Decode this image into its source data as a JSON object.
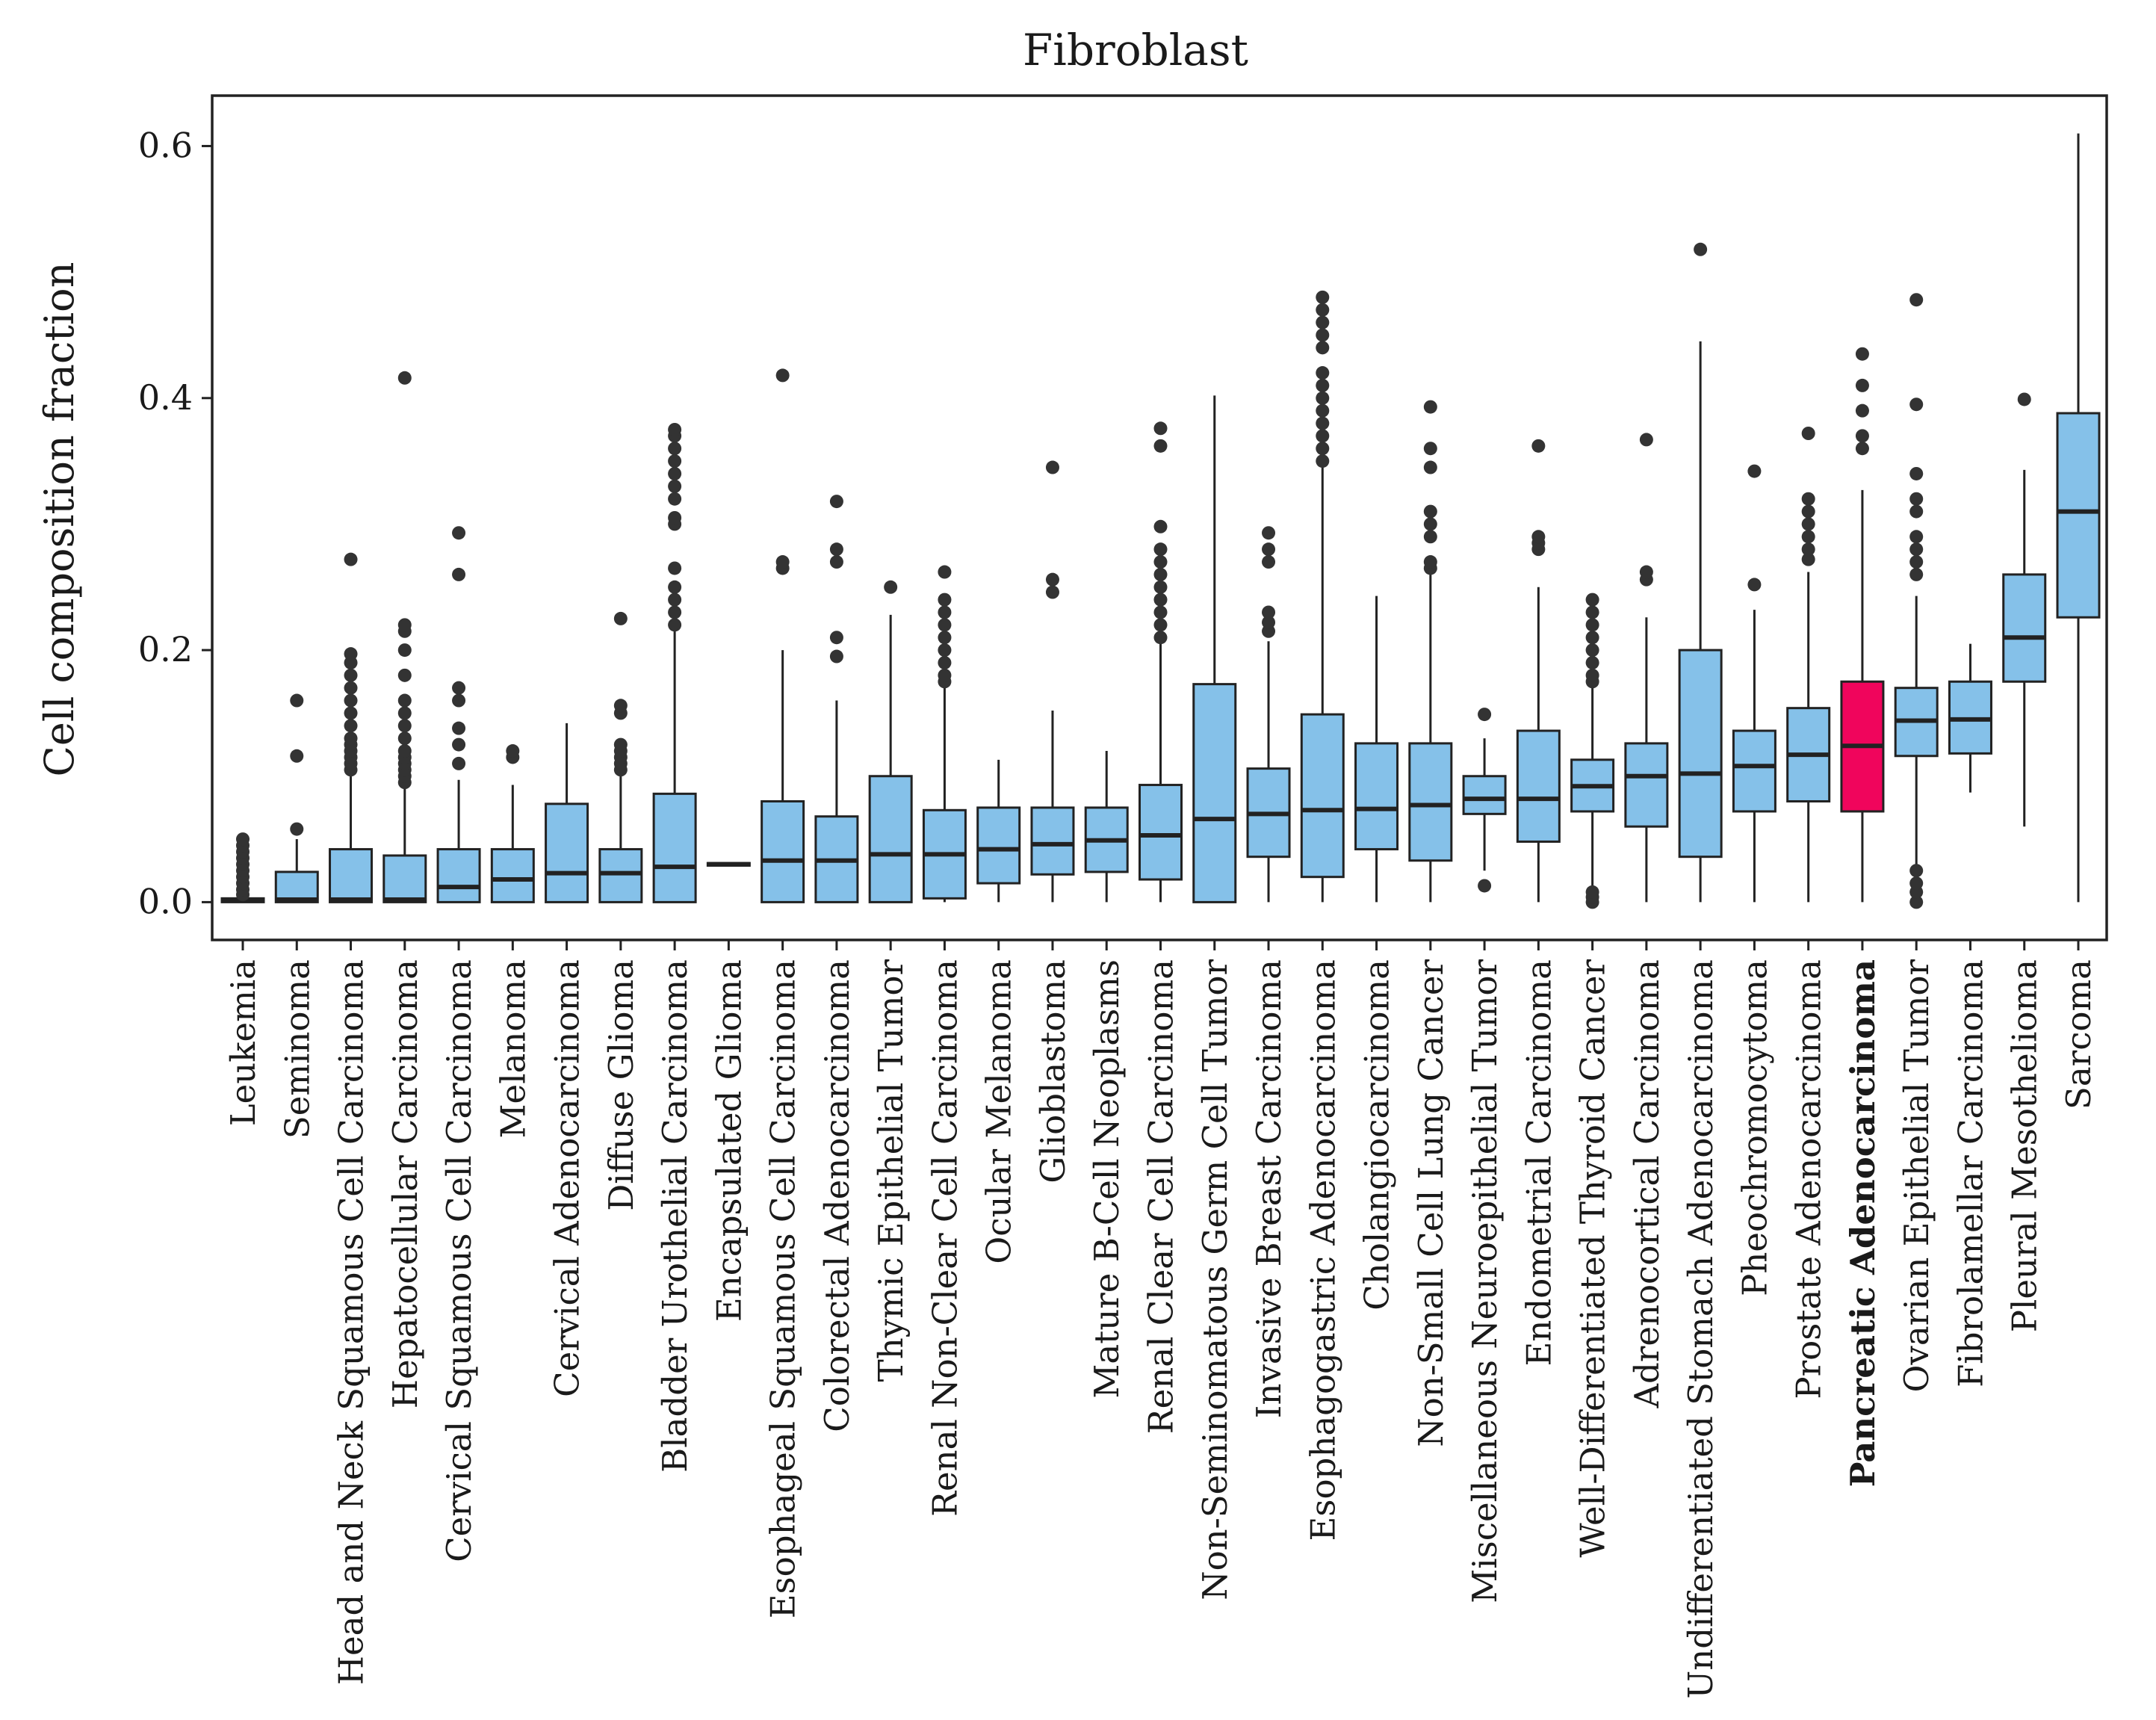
{
  "chart_data": {
    "type": "box",
    "title": "Fibroblast",
    "xlabel": "",
    "ylabel": "Cell composition fraction",
    "ylim": [
      -0.03,
      0.64
    ],
    "yticks": [
      "0.0",
      "0.2",
      "0.4",
      "0.6"
    ],
    "ytick_values": [
      0.0,
      0.2,
      0.4,
      0.6
    ],
    "box_color": "#85c1e9",
    "highlight_color": "#f0055c",
    "highlight_category": "Pancreatic Adenocarcinoma",
    "categories": [
      {
        "name": "Leukemia",
        "q1": 0.0,
        "median": 0.002,
        "q3": 0.003,
        "whislo": 0.0,
        "whishi": 0.004,
        "fliers": [
          0.006,
          0.01,
          0.015,
          0.02,
          0.025,
          0.03,
          0.035,
          0.04,
          0.045,
          0.05
        ]
      },
      {
        "name": "Seminoma",
        "q1": 0.0,
        "median": 0.002,
        "q3": 0.024,
        "whislo": 0.0,
        "whishi": 0.05,
        "fliers": [
          0.058,
          0.116,
          0.16
        ]
      },
      {
        "name": "Head and Neck Squamous Cell Carcinoma",
        "q1": 0.0,
        "median": 0.002,
        "q3": 0.042,
        "whislo": 0.0,
        "whishi": 0.1,
        "fliers": [
          0.105,
          0.11,
          0.115,
          0.12,
          0.125,
          0.13,
          0.14,
          0.15,
          0.16,
          0.17,
          0.18,
          0.19,
          0.197,
          0.272
        ]
      },
      {
        "name": "Hepatocellular Carcinoma",
        "q1": 0.0,
        "median": 0.002,
        "q3": 0.037,
        "whislo": 0.0,
        "whishi": 0.09,
        "fliers": [
          0.095,
          0.1,
          0.105,
          0.11,
          0.115,
          0.12,
          0.13,
          0.14,
          0.15,
          0.16,
          0.18,
          0.2,
          0.215,
          0.22,
          0.416
        ]
      },
      {
        "name": "Cervical Squamous Cell Carcinoma",
        "q1": 0.0,
        "median": 0.012,
        "q3": 0.042,
        "whislo": 0.0,
        "whishi": 0.097,
        "fliers": [
          0.11,
          0.125,
          0.138,
          0.16,
          0.17,
          0.26,
          0.293
        ]
      },
      {
        "name": "Melanoma",
        "q1": 0.0,
        "median": 0.018,
        "q3": 0.042,
        "whislo": 0.0,
        "whishi": 0.093,
        "fliers": [
          0.115,
          0.12
        ]
      },
      {
        "name": "Cervical Adenocarcinoma",
        "q1": 0.0,
        "median": 0.023,
        "q3": 0.078,
        "whislo": 0.0,
        "whishi": 0.142,
        "fliers": []
      },
      {
        "name": "Diffuse Glioma",
        "q1": 0.0,
        "median": 0.023,
        "q3": 0.042,
        "whislo": 0.0,
        "whishi": 0.1,
        "fliers": [
          0.105,
          0.11,
          0.115,
          0.12,
          0.125,
          0.15,
          0.156,
          0.225
        ]
      },
      {
        "name": "Bladder Urothelial Carcinoma",
        "q1": 0.0,
        "median": 0.028,
        "q3": 0.086,
        "whislo": 0.0,
        "whishi": 0.215,
        "fliers": [
          0.22,
          0.23,
          0.24,
          0.25,
          0.265,
          0.3,
          0.305,
          0.32,
          0.33,
          0.34,
          0.35,
          0.36,
          0.37,
          0.375
        ]
      },
      {
        "name": "Encapsulated Glioma",
        "q1": 0.029,
        "median": 0.03,
        "q3": 0.031,
        "whislo": 0.029,
        "whishi": 0.031,
        "fliers": []
      },
      {
        "name": "Esophageal Squamous Cell Carcinoma",
        "q1": 0.0,
        "median": 0.033,
        "q3": 0.08,
        "whislo": 0.0,
        "whishi": 0.2,
        "fliers": [
          0.265,
          0.27,
          0.418
        ]
      },
      {
        "name": "Colorectal Adenocarcinoma",
        "q1": 0.0,
        "median": 0.033,
        "q3": 0.068,
        "whislo": 0.0,
        "whishi": 0.16,
        "fliers": [
          0.195,
          0.21,
          0.27,
          0.28,
          0.318
        ]
      },
      {
        "name": "Thymic Epithelial Tumor",
        "q1": 0.0,
        "median": 0.038,
        "q3": 0.1,
        "whislo": 0.0,
        "whishi": 0.228,
        "fliers": [
          0.25
        ]
      },
      {
        "name": "Renal Non-Clear Cell Carcinoma",
        "q1": 0.003,
        "median": 0.038,
        "q3": 0.073,
        "whislo": 0.0,
        "whishi": 0.17,
        "fliers": [
          0.175,
          0.18,
          0.19,
          0.2,
          0.21,
          0.22,
          0.23,
          0.24,
          0.262
        ]
      },
      {
        "name": "Ocular Melanoma",
        "q1": 0.015,
        "median": 0.042,
        "q3": 0.075,
        "whislo": 0.0,
        "whishi": 0.113,
        "fliers": []
      },
      {
        "name": "Glioblastoma",
        "q1": 0.022,
        "median": 0.046,
        "q3": 0.075,
        "whislo": 0.0,
        "whishi": 0.152,
        "fliers": [
          0.246,
          0.256,
          0.345
        ]
      },
      {
        "name": "Mature B-Cell Neoplasms",
        "q1": 0.024,
        "median": 0.049,
        "q3": 0.075,
        "whislo": 0.0,
        "whishi": 0.12,
        "fliers": []
      },
      {
        "name": "Renal Clear Cell Carcinoma",
        "q1": 0.018,
        "median": 0.053,
        "q3": 0.093,
        "whislo": 0.0,
        "whishi": 0.205,
        "fliers": [
          0.21,
          0.22,
          0.23,
          0.24,
          0.25,
          0.26,
          0.27,
          0.28,
          0.298,
          0.362,
          0.376
        ]
      },
      {
        "name": "Non-Seminomatous Germ Cell Tumor",
        "q1": 0.0,
        "median": 0.066,
        "q3": 0.173,
        "whislo": 0.0,
        "whishi": 0.402,
        "fliers": []
      },
      {
        "name": "Invasive Breast Carcinoma",
        "q1": 0.036,
        "median": 0.07,
        "q3": 0.106,
        "whislo": 0.0,
        "whishi": 0.207,
        "fliers": [
          0.215,
          0.222,
          0.23,
          0.27,
          0.28,
          0.293
        ]
      },
      {
        "name": "Esophagogastric Adenocarcinoma",
        "q1": 0.02,
        "median": 0.073,
        "q3": 0.149,
        "whislo": 0.0,
        "whishi": 0.345,
        "fliers": [
          0.35,
          0.36,
          0.37,
          0.38,
          0.39,
          0.4,
          0.41,
          0.42,
          0.44,
          0.45,
          0.46,
          0.47,
          0.48
        ]
      },
      {
        "name": "Cholangiocarcinoma",
        "q1": 0.042,
        "median": 0.074,
        "q3": 0.126,
        "whislo": 0.0,
        "whishi": 0.243,
        "fliers": []
      },
      {
        "name": "Non-Small Cell Lung Cancer",
        "q1": 0.033,
        "median": 0.077,
        "q3": 0.126,
        "whislo": 0.0,
        "whishi": 0.26,
        "fliers": [
          0.265,
          0.27,
          0.29,
          0.3,
          0.31,
          0.345,
          0.36,
          0.393
        ]
      },
      {
        "name": "Miscellaneous Neuroepithelial Tumor",
        "q1": 0.07,
        "median": 0.082,
        "q3": 0.1,
        "whislo": 0.025,
        "whishi": 0.13,
        "fliers": [
          0.013,
          0.149
        ]
      },
      {
        "name": "Endometrial Carcinoma",
        "q1": 0.048,
        "median": 0.082,
        "q3": 0.136,
        "whislo": 0.0,
        "whishi": 0.25,
        "fliers": [
          0.28,
          0.285,
          0.29,
          0.362
        ]
      },
      {
        "name": "Well-Differentiated Thyroid Cancer",
        "q1": 0.072,
        "median": 0.092,
        "q3": 0.113,
        "whislo": 0.012,
        "whishi": 0.17,
        "fliers": [
          0.0,
          0.004,
          0.008,
          0.175,
          0.18,
          0.19,
          0.2,
          0.21,
          0.22,
          0.23,
          0.24
        ]
      },
      {
        "name": "Adrenocortical Carcinoma",
        "q1": 0.06,
        "median": 0.1,
        "q3": 0.126,
        "whislo": 0.0,
        "whishi": 0.226,
        "fliers": [
          0.256,
          0.262,
          0.367
        ]
      },
      {
        "name": "Undifferentiated Stomach Adenocarcinoma",
        "q1": 0.036,
        "median": 0.102,
        "q3": 0.2,
        "whislo": 0.0,
        "whishi": 0.445,
        "fliers": [
          0.518
        ]
      },
      {
        "name": "Pheochromocytoma",
        "q1": 0.072,
        "median": 0.108,
        "q3": 0.136,
        "whislo": 0.0,
        "whishi": 0.232,
        "fliers": [
          0.252,
          0.342
        ]
      },
      {
        "name": "Prostate Adenocarcinoma",
        "q1": 0.08,
        "median": 0.117,
        "q3": 0.154,
        "whislo": 0.0,
        "whishi": 0.262,
        "fliers": [
          0.272,
          0.28,
          0.29,
          0.3,
          0.31,
          0.32,
          0.372
        ]
      },
      {
        "name": "Pancreatic Adenocarcinoma",
        "q1": 0.072,
        "median": 0.124,
        "q3": 0.175,
        "whislo": 0.0,
        "whishi": 0.327,
        "fliers": [
          0.36,
          0.37,
          0.39,
          0.41,
          0.435
        ]
      },
      {
        "name": "Ovarian Epithelial Tumor",
        "q1": 0.116,
        "median": 0.144,
        "q3": 0.17,
        "whislo": 0.03,
        "whishi": 0.243,
        "fliers": [
          0.0,
          0.008,
          0.015,
          0.025,
          0.26,
          0.27,
          0.28,
          0.29,
          0.31,
          0.32,
          0.34,
          0.395,
          0.478
        ]
      },
      {
        "name": "Fibrolamellar Carcinoma",
        "q1": 0.118,
        "median": 0.145,
        "q3": 0.175,
        "whislo": 0.087,
        "whishi": 0.205,
        "fliers": []
      },
      {
        "name": "Pleural Mesothelioma",
        "q1": 0.175,
        "median": 0.21,
        "q3": 0.26,
        "whislo": 0.06,
        "whishi": 0.343,
        "fliers": [
          0.399
        ]
      },
      {
        "name": "Sarcoma",
        "q1": 0.226,
        "median": 0.31,
        "q3": 0.388,
        "whislo": 0.0,
        "whishi": 0.61,
        "fliers": []
      }
    ]
  }
}
